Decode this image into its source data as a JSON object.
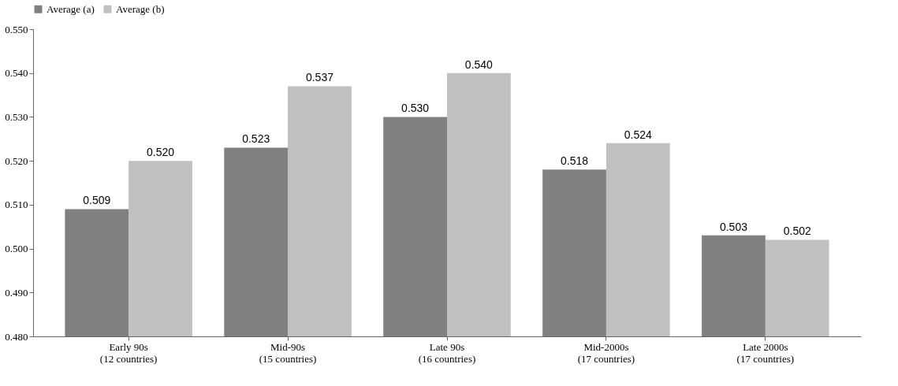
{
  "chart_data": {
    "type": "bar",
    "categories": [
      "Early 90s\n(12 countries)",
      "Mid-90s\n(15 countries)",
      "Late 90s\n(16 countries)",
      "Mid-2000s\n(17 countries)",
      "Late 2000s\n(17 countries)"
    ],
    "series": [
      {
        "name": "Average (a)",
        "color": "#808080",
        "values": [
          0.509,
          0.523,
          0.53,
          0.518,
          0.503
        ],
        "value_labels": [
          "0.509",
          "0.523",
          "0.530",
          "0.518",
          "0.503"
        ]
      },
      {
        "name": "Average (b)",
        "color": "#c0c0c0",
        "values": [
          0.52,
          0.537,
          0.54,
          0.524,
          0.502
        ],
        "value_labels": [
          "0.520",
          "0.537",
          "0.540",
          "0.524",
          "0.502"
        ]
      }
    ],
    "ylim": [
      0.48,
      0.55
    ],
    "yticks": [
      {
        "value": 0.48,
        "label": "0.480"
      },
      {
        "value": 0.49,
        "label": "0.490"
      },
      {
        "value": 0.5,
        "label": "0.500"
      },
      {
        "value": 0.51,
        "label": "0.510"
      },
      {
        "value": 0.52,
        "label": "0.520"
      },
      {
        "value": 0.53,
        "label": "0.530"
      },
      {
        "value": 0.54,
        "label": "0.540"
      },
      {
        "value": 0.55,
        "label": "0.550"
      }
    ],
    "grid": false,
    "legend": "top"
  }
}
